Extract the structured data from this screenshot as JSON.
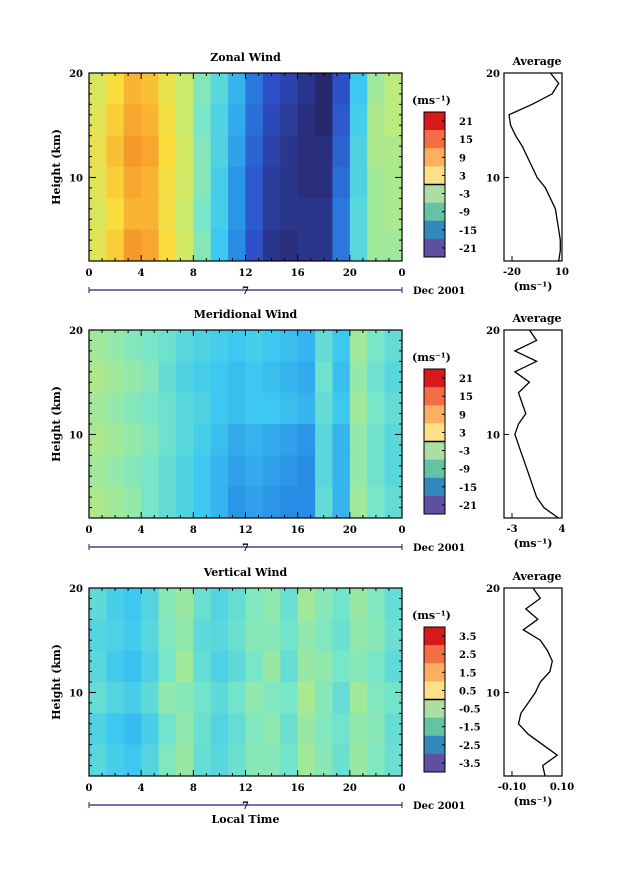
{
  "chart_data": [
    {
      "type": "heatmap",
      "title": "Zonal Wind",
      "ylabel": "Height (km)",
      "xlabel": "",
      "x_ticks": [
        "0",
        "4",
        "8",
        "12",
        "16",
        "20",
        "0"
      ],
      "xlim": [
        0,
        24
      ],
      "y_ticks": [
        "20",
        "10"
      ],
      "ylim": [
        2,
        20
      ],
      "date_label": "7",
      "date_suffix": "Dec 2001",
      "colorbar": {
        "unit_label": "(ms⁻¹)",
        "ticks": [
          "21",
          "15",
          "9",
          "3",
          "-3",
          "-9",
          "-15",
          "-21"
        ],
        "range": [
          -24,
          24
        ]
      },
      "profile": {
        "title": "Average",
        "x_ticks": [
          "-20",
          "10"
        ],
        "xlim": [
          -25,
          10
        ],
        "unit_label": "(ms⁻¹)",
        "y_ticks": [
          "20",
          "10"
        ],
        "heights": [
          2,
          3,
          4,
          5,
          6,
          7,
          8,
          9,
          10,
          11,
          12,
          13,
          14,
          15,
          16,
          17,
          18,
          19,
          20
        ],
        "values": [
          8,
          9,
          9,
          8,
          7,
          6,
          3,
          0,
          -5,
          -8,
          -11,
          -14,
          -18,
          -21,
          -22,
          -8,
          4,
          8,
          3
        ]
      },
      "field": [
        [
          8,
          12,
          15,
          14,
          10,
          6,
          1,
          -3,
          -8,
          -14,
          -18,
          -20,
          -22,
          -24,
          -18,
          -6,
          3,
          5
        ],
        [
          9,
          13,
          16,
          15,
          11,
          6,
          0,
          -4,
          -9,
          -15,
          -19,
          -21,
          -23,
          -24,
          -17,
          -5,
          4,
          5
        ],
        [
          10,
          14,
          17,
          16,
          12,
          7,
          1,
          -4,
          -10,
          -16,
          -20,
          -22,
          -23,
          -23,
          -16,
          -4,
          4,
          4
        ],
        [
          9,
          13,
          16,
          15,
          11,
          7,
          1,
          -5,
          -11,
          -17,
          -21,
          -22,
          -23,
          -23,
          -15,
          -4,
          3,
          4
        ],
        [
          8,
          12,
          15,
          15,
          11,
          6,
          0,
          -5,
          -11,
          -17,
          -21,
          -22,
          -22,
          -22,
          -14,
          -3,
          3,
          4
        ],
        [
          9,
          13,
          17,
          16,
          12,
          7,
          1,
          -6,
          -12,
          -18,
          -22,
          -23,
          -22,
          -22,
          -14,
          -3,
          3,
          3
        ]
      ]
    },
    {
      "type": "heatmap",
      "title": "Meridional Wind",
      "ylabel": "Height (km)",
      "xlabel": "",
      "x_ticks": [
        "0",
        "4",
        "8",
        "12",
        "16",
        "20",
        "0"
      ],
      "xlim": [
        0,
        24
      ],
      "y_ticks": [
        "20",
        "10"
      ],
      "ylim": [
        2,
        20
      ],
      "date_label": "7",
      "date_suffix": "Dec 2001",
      "colorbar": {
        "unit_label": "(ms⁻¹)",
        "ticks": [
          "21",
          "15",
          "9",
          "3",
          "-3",
          "-9",
          "-15",
          "-21"
        ],
        "range": [
          -24,
          24
        ]
      },
      "profile": {
        "title": "Average",
        "x_ticks": [
          "-3",
          "4"
        ],
        "xlim": [
          -3.5,
          4.5
        ],
        "unit_label": "(ms⁻¹)",
        "y_ticks": [
          "20",
          "10"
        ],
        "heights": [
          2,
          3,
          4,
          5,
          6,
          7,
          8,
          9,
          10,
          11,
          12,
          13,
          14,
          15,
          16,
          17,
          18,
          19,
          20
        ],
        "values": [
          4,
          2,
          1,
          0.5,
          0,
          -0.5,
          -1,
          -1.5,
          -2,
          -1.5,
          -0.5,
          -1,
          -1.5,
          0,
          -2,
          1,
          -2,
          1,
          0
        ]
      },
      "field": [
        [
          3,
          2,
          1,
          0,
          -1,
          -3,
          -4,
          -5,
          -6,
          -5,
          -6,
          -7,
          -8,
          -2,
          -6,
          3,
          0,
          -2
        ],
        [
          4,
          3,
          2,
          1,
          -2,
          -4,
          -5,
          -6,
          -7,
          -6,
          -7,
          -8,
          -9,
          -1,
          -7,
          2,
          -1,
          -3
        ],
        [
          3,
          2,
          1,
          0,
          -1,
          -3,
          -4,
          -6,
          -7,
          -6,
          -6,
          -7,
          -8,
          -2,
          -6,
          3,
          0,
          -2
        ],
        [
          4,
          3,
          2,
          1,
          -1,
          -3,
          -5,
          -7,
          -9,
          -8,
          -9,
          -10,
          -11,
          -3,
          -8,
          2,
          -1,
          -3
        ],
        [
          3,
          2,
          1,
          0,
          -2,
          -4,
          -6,
          -8,
          -10,
          -9,
          -10,
          -11,
          -12,
          -3,
          -8,
          2,
          -1,
          -3
        ],
        [
          4,
          3,
          2,
          0,
          -2,
          -4,
          -6,
          -8,
          -11,
          -10,
          -11,
          -12,
          -12,
          -2,
          -8,
          3,
          0,
          -2
        ]
      ]
    },
    {
      "type": "heatmap",
      "title": "Vertical Wind",
      "ylabel": "Height (km)",
      "xlabel": "Local Time",
      "x_ticks": [
        "0",
        "4",
        "8",
        "12",
        "16",
        "20",
        "0"
      ],
      "xlim": [
        0,
        24
      ],
      "y_ticks": [
        "20",
        "10"
      ],
      "ylim": [
        2,
        20
      ],
      "date_label": "7",
      "date_suffix": "Dec 2001",
      "colorbar": {
        "unit_label": "(ms⁻¹)",
        "ticks": [
          "3.5",
          "2.5",
          "1.5",
          "0.5",
          "-0.5",
          "-1.5",
          "-2.5",
          "-3.5"
        ],
        "range": [
          -4,
          4
        ]
      },
      "profile": {
        "title": "Average",
        "x_ticks": [
          "-0.10",
          "0.10"
        ],
        "xlim": [
          -0.12,
          0.12
        ],
        "unit_label": "(ms⁻¹)",
        "y_ticks": [
          "20",
          "10"
        ],
        "heights": [
          2,
          3,
          4,
          5,
          6,
          7,
          8,
          9,
          10,
          11,
          12,
          13,
          14,
          15,
          16,
          17,
          18,
          19,
          20
        ],
        "values": [
          0.05,
          0.04,
          0.1,
          0.04,
          -0.02,
          -0.06,
          -0.05,
          -0.02,
          0.01,
          0.03,
          0.07,
          0.08,
          0.06,
          0.03,
          -0.04,
          0.02,
          -0.03,
          0.03,
          0
        ]
      },
      "field": [
        [
          -0.4,
          -0.8,
          -1.0,
          -0.6,
          0.2,
          0.4,
          -0.2,
          -0.6,
          -0.3,
          0.1,
          0.3,
          -0.2,
          0.5,
          0.2,
          -0.1,
          0.4,
          0.1,
          -0.3
        ],
        [
          -0.6,
          -0.7,
          -0.9,
          -0.5,
          0.1,
          0.3,
          -0.4,
          -0.5,
          -0.2,
          0.2,
          0.2,
          -0.1,
          0.3,
          0.1,
          -0.2,
          0.3,
          0.2,
          -0.2
        ],
        [
          -0.5,
          -0.9,
          -1.1,
          -0.7,
          0.0,
          0.5,
          -0.3,
          -0.7,
          -0.4,
          0.0,
          0.4,
          -0.3,
          0.4,
          0.3,
          0.0,
          0.2,
          0.0,
          -0.4
        ],
        [
          -0.3,
          -0.6,
          -0.8,
          -0.4,
          0.3,
          0.2,
          -0.1,
          -0.4,
          -0.1,
          0.3,
          0.1,
          0.0,
          0.6,
          0.2,
          -0.3,
          0.5,
          0.1,
          -0.1
        ],
        [
          -0.7,
          -1.0,
          -1.2,
          -0.8,
          -0.1,
          0.3,
          -0.2,
          -0.6,
          -0.3,
          0.1,
          0.3,
          -0.2,
          0.4,
          0.1,
          -0.1,
          0.3,
          0.2,
          -0.3
        ],
        [
          -0.5,
          -0.8,
          -1.0,
          -0.6,
          0.1,
          0.4,
          -0.3,
          -0.5,
          -0.2,
          0.2,
          0.2,
          -0.1,
          0.5,
          0.2,
          -0.2,
          0.4,
          0.1,
          -0.2
        ]
      ]
    }
  ]
}
